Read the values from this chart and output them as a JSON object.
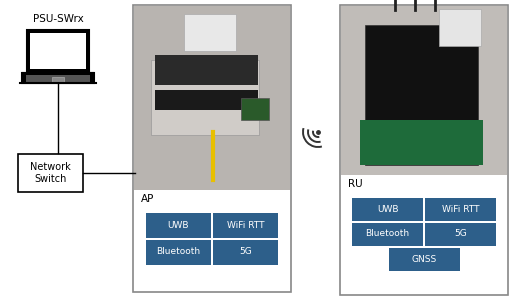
{
  "bg_color": "#ffffff",
  "laptop_label": "PSU-SWrx",
  "network_switch_label": "Network\nSwitch",
  "ap_label": "AP",
  "ru_label": "RU",
  "ap_buttons": [
    [
      "UWB",
      "WiFi RTT"
    ],
    [
      "Bluetooth",
      "5G"
    ]
  ],
  "ru_buttons": [
    [
      "UWB",
      "WiFi RTT"
    ],
    [
      "Bluetooth",
      "5G"
    ],
    [
      "GNSS"
    ]
  ],
  "button_color": "#2d5f8a",
  "button_text_color": "#ffffff",
  "box_edge_color": "#888888",
  "line_color": "#000000",
  "label_color": "#000000",
  "label_fontsize": 7,
  "button_fontsize": 6.5,
  "ap_photo_bg": "#b8b4b0",
  "ap_photo_device_color": "#d0ccc8",
  "ap_photo_black": "#1a1a1a",
  "ru_photo_bg": "#c0bcb8",
  "ru_photo_black": "#111111",
  "ru_photo_green": "#1e6b3a"
}
